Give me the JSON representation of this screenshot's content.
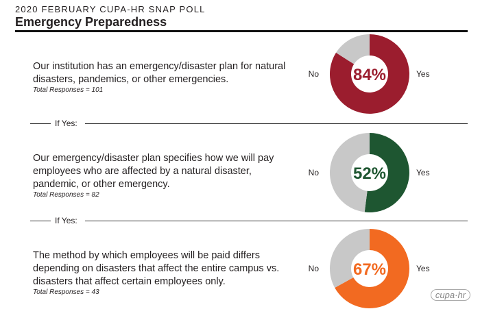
{
  "header": {
    "kicker": "2020 FEBRUARY CUPA-HR SNAP POLL",
    "title": "Emergency Preparedness"
  },
  "separator_label": "If Yes:",
  "logo": "cupa-hr",
  "chart_data": [
    {
      "type": "pie",
      "question": "Our institution has an emergency/disaster plan for natural disasters, pandemics, or other emergencies.",
      "total": "Total Responses = 101",
      "categories": [
        "Yes",
        "No"
      ],
      "values": [
        84,
        16
      ],
      "label": "84%",
      "colors": [
        "#9b1d2e",
        "#c8c8c8"
      ]
    },
    {
      "type": "pie",
      "question": "Our emergency/disaster plan specifies how we will pay employees who are affected by a natural disaster, pandemic, or other emergency.",
      "total": "Total Responses = 82",
      "categories": [
        "Yes",
        "No"
      ],
      "values": [
        52,
        48
      ],
      "label": "52%",
      "colors": [
        "#1e5631",
        "#c8c8c8"
      ]
    },
    {
      "type": "pie",
      "question": "The method by which employees will be paid differs depending on disasters that affect the entire campus vs. disasters that affect certain employees only.",
      "total": "Total Responses = 43",
      "categories": [
        "Yes",
        "No"
      ],
      "values": [
        67,
        33
      ],
      "label": "67%",
      "colors": [
        "#f26a21",
        "#c8c8c8"
      ]
    }
  ]
}
